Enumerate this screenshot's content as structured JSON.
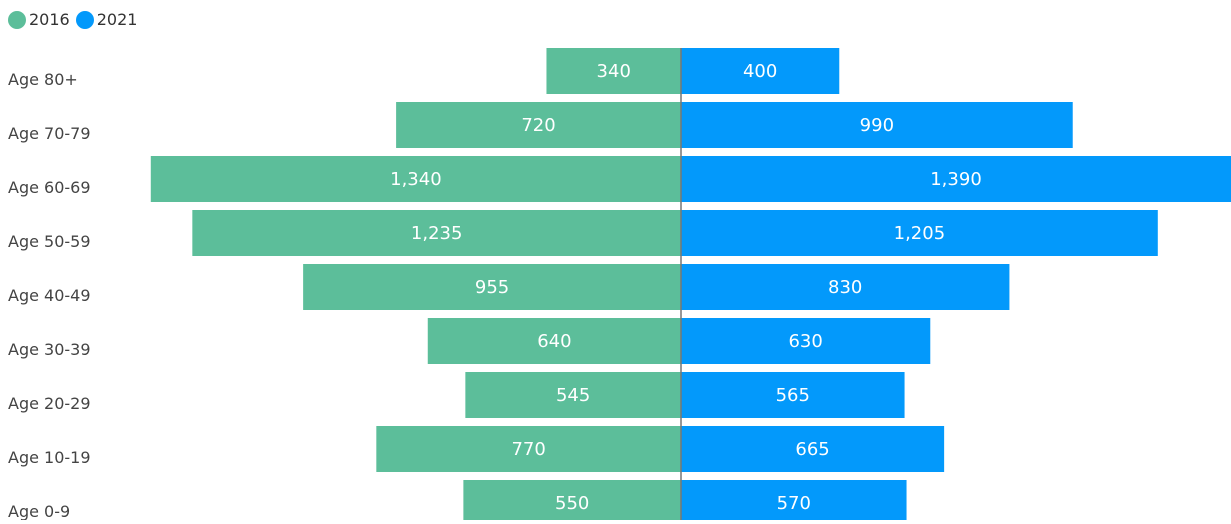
{
  "colors": {
    "series_2016": "#5cbe9a",
    "series_2021": "#0399fb",
    "axis_line": "#777777",
    "label_text": "#444444",
    "value_text": "#ffffff"
  },
  "chart_data": {
    "type": "bar",
    "orientation": "horizontal-butterfly",
    "categories": [
      "Age 80+",
      "Age 70-79",
      "Age 60-69",
      "Age 50-59",
      "Age 40-49",
      "Age 30-39",
      "Age 20-29",
      "Age 10-19",
      "Age 0-9"
    ],
    "series": [
      {
        "name": "2016",
        "side": "left",
        "values": [
          340,
          720,
          1340,
          1235,
          955,
          640,
          545,
          770,
          550
        ],
        "labels": [
          "340",
          "720",
          "1,340",
          "1,235",
          "955",
          "640",
          "545",
          "770",
          "550"
        ]
      },
      {
        "name": "2021",
        "side": "right",
        "values": [
          400,
          990,
          1390,
          1205,
          830,
          630,
          565,
          665,
          570
        ],
        "labels": [
          "400",
          "990",
          "1,390",
          "1,205",
          "830",
          "630",
          "565",
          "665",
          "570"
        ]
      }
    ],
    "legend_position": "top-left",
    "grid": false
  }
}
